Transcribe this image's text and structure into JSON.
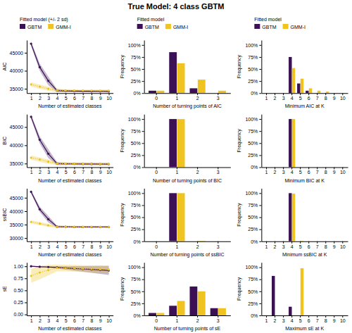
{
  "title": "True Model: 4 class GBTM",
  "chart_data": [
    {
      "type": "line",
      "x_label": "Number of estimated classes",
      "y_label": "AIC",
      "x": [
        1,
        2,
        3,
        4,
        5,
        6,
        7,
        8,
        9,
        10
      ],
      "xlim": [
        0.5,
        10.5
      ],
      "xticks": [
        1,
        2,
        3,
        4,
        5,
        6,
        7,
        8,
        9,
        10
      ],
      "ylim": [
        33800,
        48500
      ],
      "yticks": [
        35000,
        40000,
        45000
      ],
      "legend": "top",
      "legend_title": "Fitted model (+/- 2 sd)",
      "series": [
        {
          "name": "GBTM",
          "color": "#3b1055",
          "marker": "circle",
          "line_style": "solid",
          "values": [
            47500,
            41000,
            37200,
            34500,
            34400,
            34350,
            34320,
            34300,
            34290,
            34280
          ],
          "lower": [
            46900,
            40000,
            36000,
            34100,
            34100,
            34050,
            34020,
            34000,
            33990,
            33980
          ],
          "upper": [
            48100,
            42000,
            38400,
            34900,
            34700,
            34650,
            34620,
            34600,
            34590,
            34580
          ]
        },
        {
          "name": "GMM-I",
          "color": "#f0c420",
          "marker": "circle",
          "line_style": "dotted",
          "values": [
            36200,
            35600,
            35000,
            34550,
            34520,
            34500,
            34490,
            34480,
            34470,
            34460
          ],
          "lower": [
            35600,
            35000,
            34440,
            34150,
            34160,
            34140,
            34130,
            34120,
            34110,
            34100
          ],
          "upper": [
            36800,
            36200,
            35560,
            34950,
            34880,
            34860,
            34850,
            34840,
            34830,
            34820
          ]
        }
      ]
    },
    {
      "type": "bar",
      "x_label": "Number of turning points of AIC",
      "y_label": "Frequency",
      "categories": [
        "0",
        "1",
        "2",
        "3"
      ],
      "ylim": [
        0,
        110
      ],
      "yticks": [
        {
          "value": 0,
          "label": "0%"
        },
        {
          "value": 25,
          "label": "25%"
        },
        {
          "value": 50,
          "label": "50%"
        },
        {
          "value": 75,
          "label": "75%"
        },
        {
          "value": 100,
          "label": "100%"
        }
      ],
      "legend": "top",
      "legend_title": "Fitted model",
      "series": [
        {
          "name": "GBTM",
          "color": "#3b1055",
          "values": [
            5,
            85,
            10,
            0
          ]
        },
        {
          "name": "GMM-I",
          "color": "#f0c420",
          "values": [
            5,
            62,
            28,
            5
          ]
        }
      ]
    },
    {
      "type": "bar",
      "x_label": "Minimum AIC at K",
      "y_label": "Frequency",
      "categories": [
        "1",
        "2",
        "3",
        "4",
        "5",
        "6",
        "7",
        "8",
        "9",
        "10"
      ],
      "ylim": [
        0,
        110
      ],
      "yticks": [
        {
          "value": 0,
          "label": "0%"
        },
        {
          "value": 25,
          "label": "25%"
        },
        {
          "value": 50,
          "label": "50%"
        },
        {
          "value": 75,
          "label": "75%"
        },
        {
          "value": 100,
          "label": "100%"
        }
      ],
      "legend": "top",
      "legend_title": "Fitted model",
      "series": [
        {
          "name": "GBTM",
          "color": "#3b1055",
          "values": [
            0,
            0,
            0,
            75,
            20,
            5,
            0,
            0,
            0,
            0
          ]
        },
        {
          "name": "GMM-I",
          "color": "#f0c420",
          "values": [
            0,
            0,
            0,
            52,
            30,
            10,
            5,
            3,
            0,
            0
          ]
        }
      ]
    },
    {
      "type": "line",
      "x_label": "Number of estimated classes",
      "y_label": "BIC",
      "x": [
        1,
        2,
        3,
        4,
        5,
        6,
        7,
        8,
        9,
        10
      ],
      "xlim": [
        0.5,
        10.5
      ],
      "xticks": [
        1,
        2,
        3,
        4,
        5,
        6,
        7,
        8,
        9,
        10
      ],
      "ylim": [
        34000,
        48500
      ],
      "yticks": [
        35000,
        40000,
        45000
      ],
      "series": [
        {
          "color": "#3b1055",
          "marker": "circle",
          "line_style": "solid",
          "values": [
            47800,
            41500,
            37700,
            35000,
            34950,
            34920,
            34900,
            34880,
            34870,
            34860
          ],
          "lower": [
            47200,
            40500,
            36500,
            34600,
            34650,
            34620,
            34600,
            34580,
            34570,
            34560
          ],
          "upper": [
            48400,
            42500,
            38900,
            35400,
            35250,
            35220,
            35200,
            35180,
            35170,
            35160
          ]
        },
        {
          "color": "#f0c420",
          "marker": "circle",
          "line_style": "dotted",
          "values": [
            36600,
            36100,
            35500,
            35000,
            34970,
            34950,
            34930,
            34920,
            34910,
            34900
          ],
          "lower": [
            36000,
            35500,
            34940,
            34600,
            34610,
            34590,
            34570,
            34560,
            34550,
            34540
          ],
          "upper": [
            37200,
            36700,
            36060,
            35400,
            35330,
            35310,
            35290,
            35280,
            35270,
            35260
          ]
        }
      ]
    },
    {
      "type": "bar",
      "x_label": "Number of turning points of BIC",
      "y_label": "Frequency",
      "categories": [
        "0",
        "1",
        "2",
        "3"
      ],
      "ylim": [
        0,
        110
      ],
      "yticks": [
        {
          "value": 0,
          "label": "0%"
        },
        {
          "value": 25,
          "label": "25%"
        },
        {
          "value": 50,
          "label": "50%"
        },
        {
          "value": 75,
          "label": "75%"
        },
        {
          "value": 100,
          "label": "100%"
        }
      ],
      "series": [
        {
          "color": "#3b1055",
          "values": [
            0,
            100,
            0,
            0
          ]
        },
        {
          "color": "#f0c420",
          "values": [
            0,
            100,
            0,
            0
          ]
        }
      ]
    },
    {
      "type": "bar",
      "x_label": "Minimum BIC at K",
      "y_label": "Frequency",
      "categories": [
        "1",
        "2",
        "3",
        "4",
        "5",
        "6",
        "7",
        "8",
        "9",
        "10"
      ],
      "ylim": [
        0,
        110
      ],
      "yticks": [
        {
          "value": 0,
          "label": "0%"
        },
        {
          "value": 25,
          "label": "25%"
        },
        {
          "value": 50,
          "label": "50%"
        },
        {
          "value": 75,
          "label": "75%"
        },
        {
          "value": 100,
          "label": "100%"
        }
      ],
      "series": [
        {
          "color": "#3b1055",
          "values": [
            0,
            0,
            0,
            100,
            0,
            0,
            0,
            0,
            0,
            0
          ]
        },
        {
          "color": "#f0c420",
          "values": [
            0,
            0,
            0,
            100,
            0,
            0,
            0,
            0,
            0,
            0
          ]
        }
      ]
    },
    {
      "type": "line",
      "x_label": "Number of estimated classes",
      "y_label": "ssBIC",
      "x": [
        1,
        2,
        3,
        4,
        5,
        6,
        7,
        8,
        9,
        10
      ],
      "xlim": [
        0.5,
        10.5
      ],
      "xticks": [
        1,
        2,
        3,
        4,
        5,
        6,
        7,
        8,
        9,
        10
      ],
      "ylim": [
        28800,
        48500
      ],
      "yticks": [
        30000,
        35000,
        40000,
        45000
      ],
      "series": [
        {
          "color": "#3b1055",
          "marker": "circle",
          "line_style": "solid",
          "values": [
            47200,
            40700,
            37000,
            34250,
            34200,
            34170,
            34150,
            34130,
            34120,
            34110
          ],
          "lower": [
            46600,
            39700,
            35800,
            33850,
            33900,
            33870,
            33850,
            33830,
            33820,
            33810
          ],
          "upper": [
            47800,
            41700,
            38200,
            34650,
            34500,
            34470,
            34450,
            34430,
            34420,
            34410
          ]
        },
        {
          "color": "#f0c420",
          "marker": "circle",
          "line_style": "dotted",
          "values": [
            36000,
            35400,
            34700,
            34250,
            34220,
            34200,
            34180,
            34170,
            34160,
            34150
          ],
          "lower": [
            35400,
            34800,
            34140,
            33850,
            33860,
            33840,
            33820,
            33810,
            33800,
            33790
          ],
          "upper": [
            36600,
            36000,
            35260,
            34650,
            34580,
            34560,
            34540,
            34530,
            34520,
            34510
          ]
        }
      ]
    },
    {
      "type": "bar",
      "x_label": "Number of turning points of ssBIC",
      "y_label": "Frequency",
      "categories": [
        "0",
        "1",
        "2",
        "3"
      ],
      "ylim": [
        0,
        110
      ],
      "yticks": [
        {
          "value": 0,
          "label": "0%"
        },
        {
          "value": 25,
          "label": "25%"
        },
        {
          "value": 50,
          "label": "50%"
        },
        {
          "value": 75,
          "label": "75%"
        },
        {
          "value": 100,
          "label": "100%"
        }
      ],
      "series": [
        {
          "color": "#3b1055",
          "values": [
            0,
            100,
            0,
            0
          ]
        },
        {
          "color": "#f0c420",
          "values": [
            0,
            100,
            1,
            0
          ]
        }
      ]
    },
    {
      "type": "bar",
      "x_label": "Minimum ssBIC at K",
      "y_label": "Frequency",
      "categories": [
        "1",
        "2",
        "3",
        "4",
        "5",
        "6",
        "7",
        "8",
        "9",
        "10"
      ],
      "ylim": [
        0,
        110
      ],
      "yticks": [
        {
          "value": 0,
          "label": "0%"
        },
        {
          "value": 25,
          "label": "25%"
        },
        {
          "value": 50,
          "label": "50%"
        },
        {
          "value": 75,
          "label": "75%"
        },
        {
          "value": 100,
          "label": "100%"
        }
      ],
      "series": [
        {
          "color": "#3b1055",
          "values": [
            0,
            0,
            0,
            100,
            0,
            0,
            0,
            0,
            0,
            0
          ]
        },
        {
          "color": "#f0c420",
          "values": [
            0,
            0,
            0,
            99,
            1,
            0,
            0,
            0,
            0,
            0
          ]
        }
      ]
    },
    {
      "type": "line",
      "x_label": "Number of estimated classes",
      "y_label": "sE",
      "x": [
        1,
        2,
        3,
        4,
        5,
        6,
        7,
        8,
        9,
        10
      ],
      "xlim": [
        0.5,
        10.5
      ],
      "xticks": [
        1,
        2,
        3,
        4,
        5,
        6,
        7,
        8,
        9,
        10
      ],
      "ylim": [
        -0.02,
        1.08
      ],
      "yticks": [
        {
          "value": 0,
          "label": "0.00"
        },
        0.25,
        {
          "value": 0.5,
          "label": "0.50"
        },
        0.75,
        {
          "value": 1,
          "label": "1.00"
        }
      ],
      "series": [
        {
          "color": "#3b1055",
          "marker": "circle",
          "line_style": "solid",
          "values": [
            1.0,
            0.99,
            0.985,
            0.975,
            0.965,
            0.955,
            0.945,
            0.935,
            0.925,
            0.915
          ],
          "lower": [
            0.994,
            0.978,
            0.969,
            0.951,
            0.929,
            0.907,
            0.885,
            0.863,
            0.841,
            0.819
          ],
          "upper": [
            1.006,
            1.002,
            1.001,
            0.999,
            1.001,
            1.003,
            1.005,
            1.007,
            1.009,
            1.011
          ]
        },
        {
          "color": "#f0c420",
          "marker": "circle",
          "line_style": "dotted",
          "values": [
            0.8,
            0.87,
            0.92,
            0.965,
            0.962,
            0.958,
            0.952,
            0.945,
            0.938,
            0.931
          ],
          "lower": [
            0.66,
            0.73,
            0.81,
            0.895,
            0.892,
            0.888,
            0.882,
            0.875,
            0.868,
            0.861
          ],
          "upper": [
            0.94,
            1.01,
            1.03,
            1.035,
            1.032,
            1.028,
            1.022,
            1.015,
            1.008,
            1.001
          ]
        }
      ]
    },
    {
      "type": "bar",
      "x_label": "Number of turning points of sE",
      "y_label": "Frequency",
      "categories": [
        "0",
        "1",
        "2",
        "3"
      ],
      "ylim": [
        0,
        110
      ],
      "yticks": [
        {
          "value": 0,
          "label": "0%"
        },
        {
          "value": 25,
          "label": "25%"
        },
        {
          "value": 50,
          "label": "50%"
        },
        {
          "value": 75,
          "label": "75%"
        },
        {
          "value": 100,
          "label": "100%"
        }
      ],
      "series": [
        {
          "color": "#3b1055",
          "values": [
            5,
            20,
            60,
            15
          ]
        },
        {
          "color": "#f0c420",
          "values": [
            5,
            30,
            50,
            15
          ]
        }
      ]
    },
    {
      "type": "bar",
      "x_label": "Maximum sE at K",
      "y_label": "Frequency",
      "categories": [
        "1",
        "2",
        "3",
        "4",
        "5",
        "6",
        "7",
        "8",
        "9",
        "10"
      ],
      "ylim": [
        0,
        110
      ],
      "yticks": [
        {
          "value": 0,
          "label": "0%"
        },
        {
          "value": 25,
          "label": "25%"
        },
        {
          "value": 50,
          "label": "50%"
        },
        {
          "value": 75,
          "label": "75%"
        },
        {
          "value": 100,
          "label": "100%"
        }
      ],
      "series": [
        {
          "color": "#3b1055",
          "values": [
            0,
            82,
            0,
            18,
            0,
            0,
            0,
            0,
            0,
            0
          ]
        },
        {
          "color": "#f0c420",
          "values": [
            0,
            0,
            0,
            0,
            98,
            0,
            0,
            0,
            0,
            0
          ]
        }
      ]
    }
  ]
}
